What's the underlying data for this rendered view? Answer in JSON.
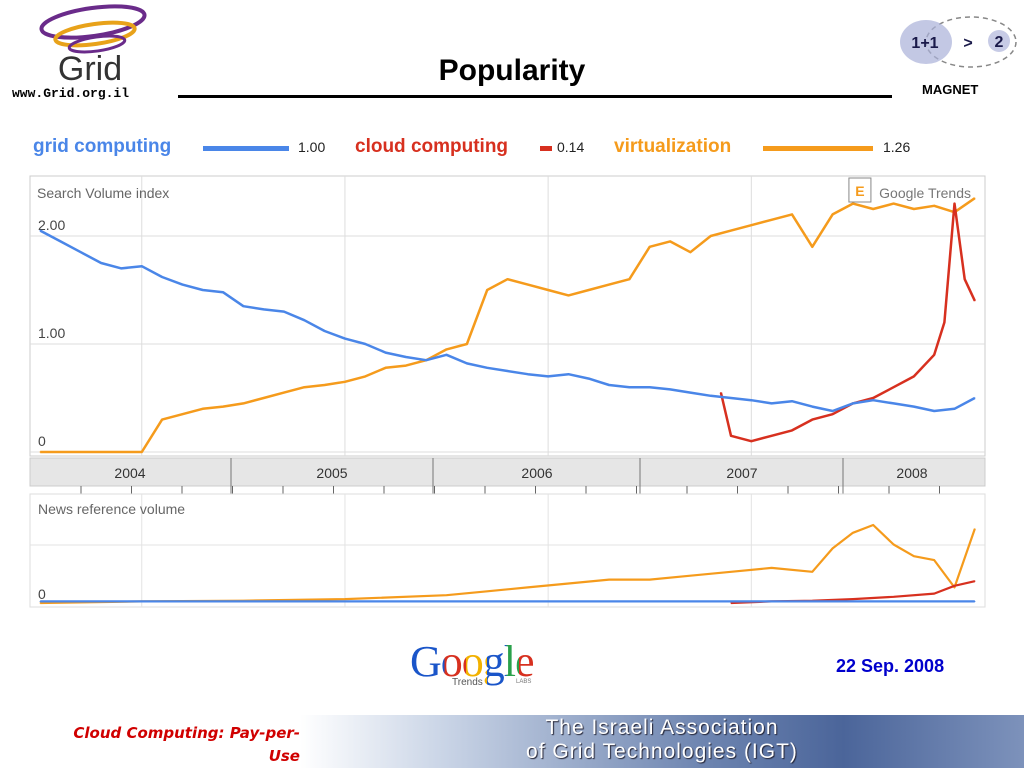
{
  "header": {
    "logo_text": "Grid",
    "url": "www.Grid.org.il",
    "title": "Popularity",
    "magnet_label": "MAGNET",
    "magnet_formula_left": "1+1",
    "magnet_formula_op": ">",
    "magnet_formula_right": "2"
  },
  "legend": [
    {
      "label": "grid computing",
      "value": "1.00",
      "color": "#4a86e8"
    },
    {
      "label": "cloud computing",
      "value": "0.14",
      "color": "#d7301f"
    },
    {
      "label": "virtualization",
      "value": "1.26",
      "color": "#f59b1c"
    }
  ],
  "chart_data": [
    {
      "type": "line",
      "panel_label": "Search Volume index",
      "watermark": "Google Trends",
      "annotation_flag": "E",
      "y_tick_labels": [
        "2.00",
        "1.00",
        "0"
      ],
      "ylim": [
        0,
        2.5
      ],
      "xlim": [
        2003.95,
        2008.65
      ],
      "x_tick_labels": [
        "2004",
        "2005",
        "2006",
        "2007",
        "2008"
      ],
      "grid": true,
      "series": [
        {
          "name": "grid computing",
          "color": "#4a86e8",
          "x": [
            2004.0,
            2004.1,
            2004.2,
            2004.3,
            2004.4,
            2004.5,
            2004.6,
            2004.7,
            2004.8,
            2004.9,
            2005.0,
            2005.1,
            2005.2,
            2005.3,
            2005.4,
            2005.5,
            2005.6,
            2005.7,
            2005.8,
            2005.9,
            2006.0,
            2006.1,
            2006.2,
            2006.3,
            2006.4,
            2006.5,
            2006.6,
            2006.7,
            2006.8,
            2006.9,
            2007.0,
            2007.1,
            2007.2,
            2007.3,
            2007.4,
            2007.5,
            2007.6,
            2007.7,
            2007.8,
            2007.9,
            2008.0,
            2008.1,
            2008.2,
            2008.3,
            2008.4,
            2008.5,
            2008.6
          ],
          "values": [
            2.05,
            1.95,
            1.85,
            1.75,
            1.7,
            1.72,
            1.62,
            1.55,
            1.5,
            1.48,
            1.35,
            1.32,
            1.3,
            1.22,
            1.12,
            1.05,
            1.0,
            0.92,
            0.88,
            0.85,
            0.9,
            0.82,
            0.78,
            0.75,
            0.72,
            0.7,
            0.72,
            0.68,
            0.62,
            0.6,
            0.6,
            0.58,
            0.55,
            0.52,
            0.5,
            0.48,
            0.45,
            0.47,
            0.42,
            0.38,
            0.45,
            0.48,
            0.45,
            0.42,
            0.38,
            0.4,
            0.5
          ]
        },
        {
          "name": "virtualization",
          "color": "#f59b1c",
          "x": [
            2004.0,
            2004.1,
            2004.2,
            2004.3,
            2004.4,
            2004.5,
            2004.6,
            2004.7,
            2004.8,
            2004.9,
            2005.0,
            2005.1,
            2005.2,
            2005.3,
            2005.4,
            2005.5,
            2005.6,
            2005.7,
            2005.8,
            2005.9,
            2006.0,
            2006.1,
            2006.2,
            2006.3,
            2006.4,
            2006.5,
            2006.6,
            2006.7,
            2006.8,
            2006.9,
            2007.0,
            2007.1,
            2007.2,
            2007.3,
            2007.4,
            2007.5,
            2007.6,
            2007.7,
            2007.8,
            2007.9,
            2008.0,
            2008.1,
            2008.2,
            2008.3,
            2008.4,
            2008.5,
            2008.6
          ],
          "values": [
            0.0,
            0.0,
            0.0,
            0.0,
            0.0,
            0.0,
            0.3,
            0.35,
            0.4,
            0.42,
            0.45,
            0.5,
            0.55,
            0.6,
            0.62,
            0.65,
            0.7,
            0.78,
            0.8,
            0.85,
            0.95,
            1.0,
            1.5,
            1.6,
            1.55,
            1.5,
            1.45,
            1.5,
            1.55,
            1.6,
            1.9,
            1.95,
            1.85,
            2.0,
            2.05,
            2.1,
            2.15,
            2.2,
            1.9,
            2.2,
            2.3,
            2.25,
            2.3,
            2.25,
            2.28,
            2.22,
            2.35
          ]
        },
        {
          "name": "cloud computing",
          "color": "#d7301f",
          "x": [
            2007.35,
            2007.4,
            2007.5,
            2007.6,
            2007.7,
            2007.8,
            2007.9,
            2008.0,
            2008.1,
            2008.2,
            2008.3,
            2008.4,
            2008.45,
            2008.5,
            2008.55,
            2008.6
          ],
          "values": [
            0.55,
            0.15,
            0.1,
            0.15,
            0.2,
            0.3,
            0.35,
            0.45,
            0.5,
            0.6,
            0.7,
            0.9,
            1.2,
            2.3,
            1.6,
            1.4
          ]
        }
      ]
    },
    {
      "type": "line",
      "panel_label": "News reference volume",
      "y_tick_labels": [
        "0"
      ],
      "xlim": [
        2003.95,
        2008.65
      ],
      "series": [
        {
          "name": "grid computing",
          "color": "#4a86e8",
          "x": [
            2004.0,
            2005.0,
            2006.0,
            2007.0,
            2008.0,
            2008.6
          ],
          "values": [
            0.02,
            0.02,
            0.02,
            0.02,
            0.02,
            0.02
          ]
        },
        {
          "name": "virtualization",
          "color": "#f59b1c",
          "x": [
            2004.0,
            2004.5,
            2005.0,
            2005.5,
            2006.0,
            2006.2,
            2006.4,
            2006.6,
            2006.8,
            2007.0,
            2007.2,
            2007.4,
            2007.6,
            2007.8,
            2007.9,
            2008.0,
            2008.1,
            2008.2,
            2008.3,
            2008.4,
            2008.5,
            2008.6
          ],
          "values": [
            0.0,
            0.02,
            0.03,
            0.05,
            0.1,
            0.15,
            0.2,
            0.25,
            0.3,
            0.3,
            0.35,
            0.4,
            0.45,
            0.4,
            0.7,
            0.9,
            1.0,
            0.75,
            0.6,
            0.55,
            0.2,
            0.95
          ]
        },
        {
          "name": "cloud computing",
          "color": "#d7301f",
          "x": [
            2007.4,
            2007.6,
            2007.8,
            2008.0,
            2008.2,
            2008.4,
            2008.5,
            2008.6
          ],
          "values": [
            0.0,
            0.02,
            0.03,
            0.05,
            0.08,
            0.12,
            0.22,
            0.28
          ]
        }
      ]
    }
  ],
  "footer": {
    "google_text": "Google",
    "google_trends": "Trends",
    "google_labs": "LABS",
    "date": "22 Sep. 2008",
    "left_text_line1": "Cloud Computing: Pay-per-",
    "left_text_line2": "Use",
    "band_line1": "The Israeli Association",
    "band_line2": "of Grid Technologies (IGT)"
  }
}
